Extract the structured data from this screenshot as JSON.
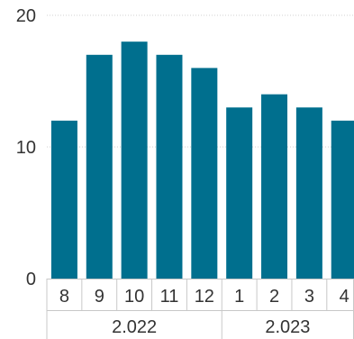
{
  "chart_data": {
    "type": "bar",
    "categories": [
      "8",
      "9",
      "10",
      "11",
      "12",
      "1",
      "2",
      "3",
      "4"
    ],
    "values": [
      12,
      17,
      18,
      17,
      16,
      13,
      14,
      13,
      12
    ],
    "groups": [
      {
        "label": "2.022",
        "categories": [
          "8",
          "9",
          "10",
          "11",
          "12"
        ]
      },
      {
        "label": "2.023",
        "categories": [
          "1",
          "2",
          "3",
          "4"
        ]
      }
    ],
    "yticks": [
      "0",
      "10",
      "20"
    ],
    "ylim": [
      0,
      20
    ],
    "grid": true,
    "bar_color": "#006f8e",
    "title": "",
    "xlabel": "",
    "ylabel": ""
  }
}
